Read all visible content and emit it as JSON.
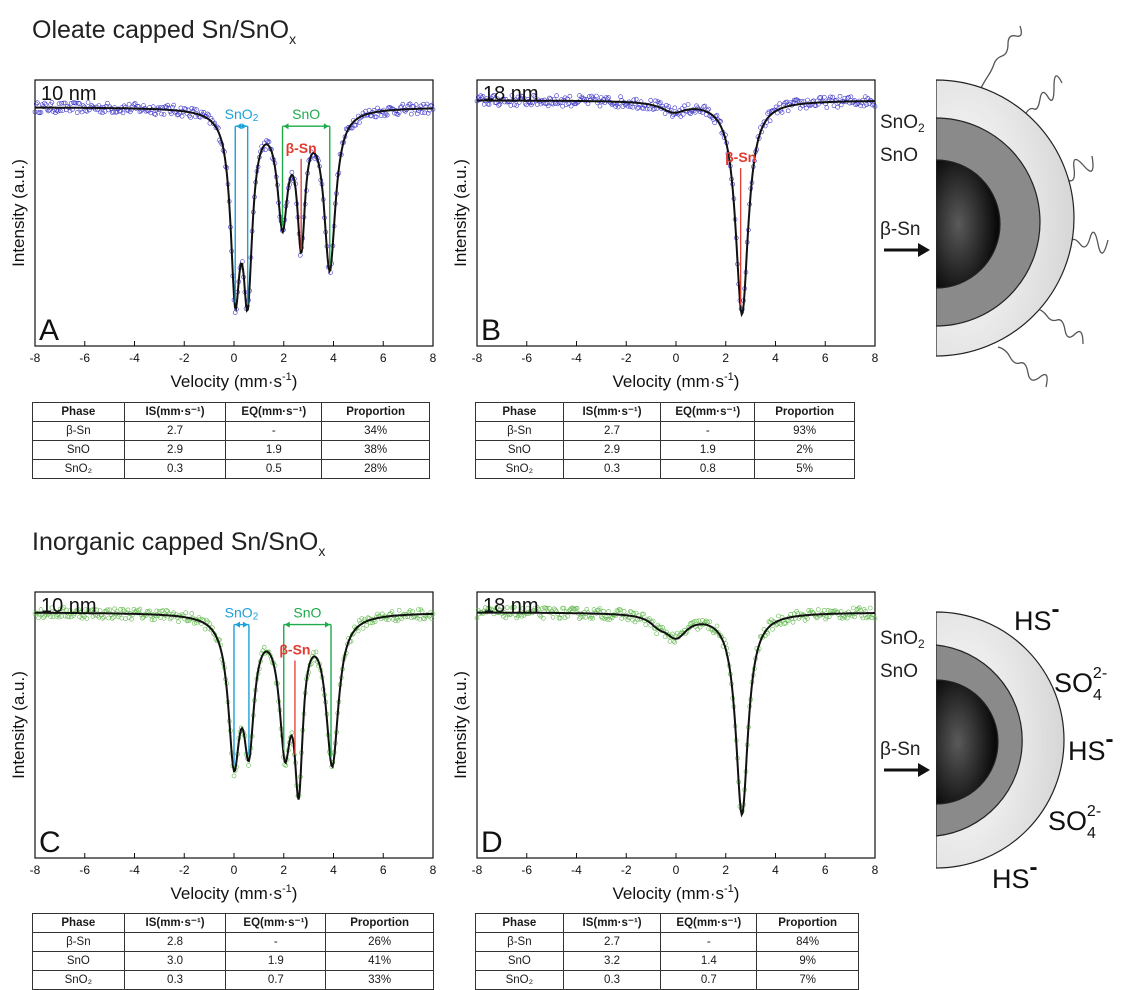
{
  "sections": [
    {
      "title_main": "Oleate capped Sn/SnO",
      "title_sub": "x"
    },
    {
      "title_main": "Inorganic capped Sn/SnO",
      "title_sub": "x"
    }
  ],
  "axis": {
    "xlabel": "Velocity (mm·s",
    "xlabel_sup": "-1",
    "xlabel_end": ")",
    "ylabel": "Intensity (a.u.)"
  },
  "table_headers": [
    "Phase",
    "IS(mm·s⁻¹)",
    "EQ(mm·s⁻¹)",
    "Proportion"
  ],
  "chart_data": [
    {
      "type": "scatter",
      "panel": "A",
      "size_label": "10 nm",
      "xlim": [
        -8,
        8
      ],
      "xticks": [
        -8,
        -6,
        -4,
        -2,
        0,
        2,
        4,
        6,
        8
      ],
      "data_color": "#3a33c8",
      "fit_color": "#111111",
      "baseline": 1.0,
      "ylim": [
        0.0,
        1.08
      ],
      "components": [
        {
          "phase": "β-Sn",
          "is": 2.7,
          "eq": null,
          "proportion": "34%"
        },
        {
          "phase": "SnO",
          "is": 2.9,
          "eq": 1.9,
          "proportion": "38%"
        },
        {
          "phase": "SnO2",
          "is": 0.3,
          "eq": 0.5,
          "proportion": "28%"
        }
      ],
      "fit": {
        "peaks": [
          [
            0.05,
            0.71,
            0.45
          ],
          [
            0.55,
            0.71,
            0.45
          ],
          [
            1.95,
            0.45,
            0.5
          ],
          [
            3.85,
            0.66,
            0.55
          ],
          [
            2.7,
            0.52,
            0.38
          ]
        ]
      },
      "markers": [
        {
          "label": "SnO2",
          "color": "#1ba0d8",
          "x1": 0.05,
          "x2": 0.55,
          "height": 0.92
        },
        {
          "label": "SnO",
          "color": "#1faa4b",
          "x1": 1.95,
          "x2": 3.85,
          "height": 0.92
        },
        {
          "label": "β-Sn",
          "color": "#e23a30",
          "x1": 2.7,
          "height": 0.8
        }
      ],
      "table": [
        [
          "β-Sn",
          "2.7",
          "-",
          "34%"
        ],
        [
          "SnO",
          "2.9",
          "1.9",
          "38%"
        ],
        [
          "SnO₂",
          "0.3",
          "0.5",
          "28%"
        ]
      ]
    },
    {
      "type": "scatter",
      "panel": "B",
      "size_label": "18 nm",
      "xlim": [
        -8,
        8
      ],
      "xticks": [
        -8,
        -6,
        -4,
        -2,
        0,
        2,
        4,
        6,
        8
      ],
      "data_color": "#3a33c8",
      "fit_color": "#111111",
      "baseline": 1.0,
      "ylim": [
        0.0,
        1.05
      ],
      "components": [
        {
          "phase": "β-Sn",
          "is": 2.7,
          "eq": null,
          "proportion": "93%"
        },
        {
          "phase": "SnO",
          "is": 2.9,
          "eq": 1.9,
          "proportion": "2%"
        },
        {
          "phase": "SnO2",
          "is": 0.3,
          "eq": 0.8,
          "proportion": "5%"
        }
      ],
      "fit": {
        "peaks": [
          [
            2.65,
            0.87,
            0.62
          ],
          [
            -0.1,
            0.04,
            1.2
          ]
        ]
      },
      "markers": [
        {
          "label": "β-Sn",
          "color": "#e23a30",
          "x1": 2.6,
          "height": 0.74
        }
      ],
      "table": [
        [
          "β-Sn",
          "2.7",
          "-",
          "93%"
        ],
        [
          "SnO",
          "2.9",
          "1.9",
          "2%"
        ],
        [
          "SnO₂",
          "0.3",
          "0.8",
          "5%"
        ]
      ]
    },
    {
      "type": "scatter",
      "panel": "C",
      "size_label": "10 nm",
      "xlim": [
        -8,
        8
      ],
      "xticks": [
        -8,
        -6,
        -4,
        -2,
        0,
        2,
        4,
        6,
        8
      ],
      "data_color": "#5fb84a",
      "fit_color": "#111111",
      "baseline": 1.0,
      "ylim": [
        0.0,
        1.05
      ],
      "components": [
        {
          "phase": "β-Sn",
          "is": 2.8,
          "eq": null,
          "proportion": "26%"
        },
        {
          "phase": "SnO",
          "is": 3.0,
          "eq": 1.9,
          "proportion": "41%"
        },
        {
          "phase": "SnO2",
          "is": 0.3,
          "eq": 0.7,
          "proportion": "33%"
        }
      ],
      "fit": {
        "peaks": [
          [
            0.0,
            0.56,
            0.55
          ],
          [
            0.6,
            0.48,
            0.5
          ],
          [
            2.05,
            0.5,
            0.55
          ],
          [
            3.95,
            0.6,
            0.6
          ],
          [
            2.6,
            0.62,
            0.4
          ]
        ]
      },
      "markers": [
        {
          "label": "SnO2",
          "color": "#1ba0d8",
          "x1": 0.0,
          "x2": 0.6,
          "height": 0.95
        },
        {
          "label": "SnO",
          "color": "#1faa4b",
          "x1": 2.0,
          "x2": 3.9,
          "height": 0.95
        },
        {
          "label": "β-Sn",
          "color": "#e23a30",
          "x1": 2.45,
          "height": 0.82
        }
      ],
      "table": [
        [
          "β-Sn",
          "2.8",
          "-",
          "26%"
        ],
        [
          "SnO",
          "3.0",
          "1.9",
          "41%"
        ],
        [
          "SnO₂",
          "0.3",
          "0.7",
          "33%"
        ]
      ]
    },
    {
      "type": "scatter",
      "panel": "D",
      "size_label": "18 nm",
      "xlim": [
        -8,
        8
      ],
      "xticks": [
        -8,
        -6,
        -4,
        -2,
        0,
        2,
        4,
        6,
        8
      ],
      "data_color": "#5fb84a",
      "fit_color": "#111111",
      "baseline": 1.0,
      "ylim": [
        0.0,
        1.05
      ],
      "components": [
        {
          "phase": "β-Sn",
          "is": 2.7,
          "eq": null,
          "proportion": "84%"
        },
        {
          "phase": "SnO",
          "is": 3.2,
          "eq": 1.4,
          "proportion": "9%"
        },
        {
          "phase": "SnO2",
          "is": 0.3,
          "eq": 0.7,
          "proportion": "7%"
        }
      ],
      "fit": {
        "peaks": [
          [
            2.65,
            0.82,
            0.6
          ],
          [
            0.0,
            0.09,
            1.1
          ],
          [
            -0.7,
            0.03,
            0.8
          ]
        ]
      },
      "markers": [],
      "table": [
        [
          "β-Sn",
          "2.7",
          "-",
          "84%"
        ],
        [
          "SnO",
          "3.2",
          "1.4",
          "9%"
        ],
        [
          "SnO₂",
          "0.3",
          "0.7",
          "7%"
        ]
      ]
    }
  ],
  "schematics": [
    {
      "layers": {
        "outer": "SnO",
        "outer_sub": "2",
        "middle": "SnO",
        "core": "β-Sn"
      },
      "ligands": "oleate"
    },
    {
      "layers": {
        "outer": "SnO",
        "outer_sub": "2",
        "middle": "SnO",
        "core": "β-Sn"
      },
      "ions": [
        {
          "text": "HS",
          "charge": "-"
        },
        {
          "text": "SO",
          "sub": "4",
          "charge": "2-"
        },
        {
          "text": "HS",
          "charge": "-"
        },
        {
          "text": "SO",
          "sub": "4",
          "charge": "2-"
        },
        {
          "text": "HS",
          "charge": "-"
        }
      ]
    }
  ]
}
